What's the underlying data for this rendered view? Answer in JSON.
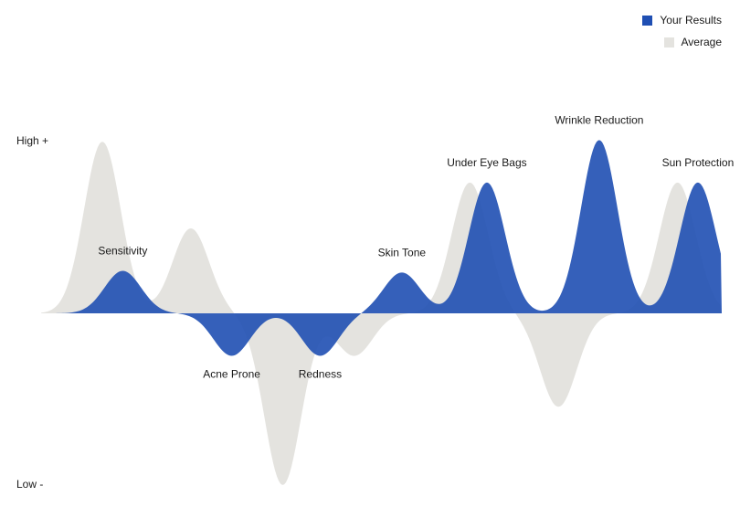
{
  "chart_data": {
    "type": "area",
    "title": "",
    "y_axis_labels": {
      "high": "High +",
      "low": "Low -"
    },
    "ylim": [
      -1,
      1
    ],
    "categories": [
      "Sensitivity",
      "Acne Prone",
      "Redness",
      "Skin Tone",
      "Under Eye Bags",
      "Wrinkle Reduction",
      "Sun Protection"
    ],
    "series": [
      {
        "name": "Your Results",
        "color": "#1f4fb3",
        "values": [
          0.25,
          -0.25,
          -0.25,
          0.24,
          0.77,
          1.02,
          0.77
        ]
      },
      {
        "name": "Average",
        "color": "#e4e3df",
        "values": [
          1.01,
          0.5,
          -1.01,
          -0.25,
          0.77,
          -0.55,
          0.77
        ]
      }
    ],
    "category_peak_x": [
      0.12,
      0.28,
      0.41,
      0.53,
      0.655,
      0.82,
      0.965
    ],
    "average_peak_x": [
      0.09,
      0.22,
      0.355,
      0.46,
      0.63,
      0.76,
      0.935
    ],
    "legend_position": "top-right"
  }
}
